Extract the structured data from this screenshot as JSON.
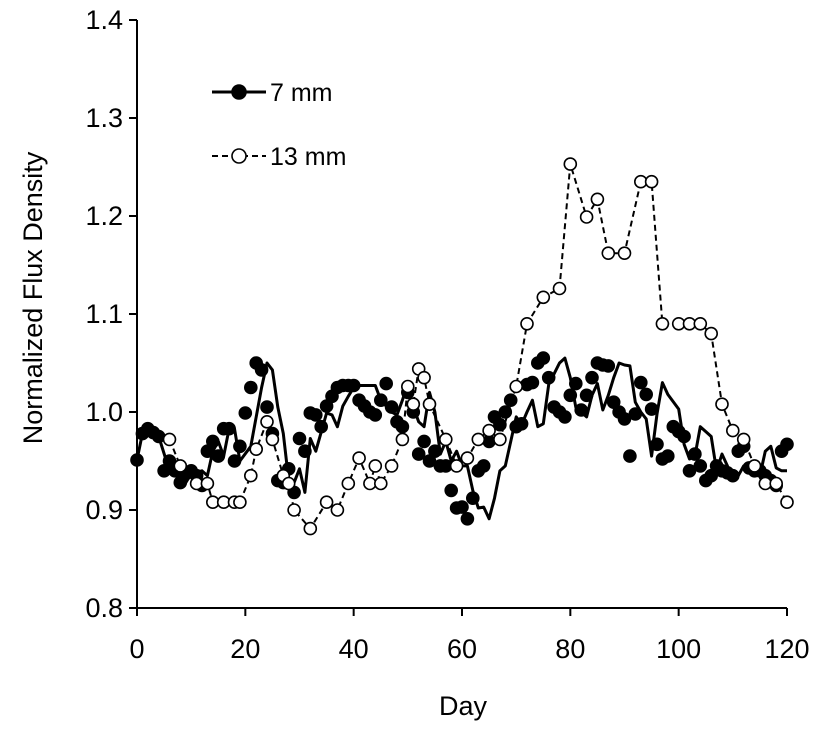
{
  "chart_data": {
    "type": "line",
    "title": "",
    "xlabel": "Day",
    "ylabel": "Normalized Flux Density",
    "xlim": [
      0,
      120
    ],
    "ylim": [
      0.8,
      1.4
    ],
    "xticks": [
      0,
      20,
      40,
      60,
      80,
      100,
      120
    ],
    "xtick_labels": [
      "0",
      "20",
      "40",
      "60",
      "80",
      "100",
      "120"
    ],
    "yticks": [
      0.8,
      0.9,
      1.0,
      1.1,
      1.2,
      1.3,
      1.4
    ],
    "ytick_labels": [
      "0.8",
      "0.9",
      "1.0",
      "1.1",
      "1.2",
      "1.3",
      "1.4"
    ],
    "grid": false,
    "legend_position": "top-left",
    "series": [
      {
        "name": "7 mm",
        "line_style": "solid",
        "marker": "filled-circle",
        "color": "#000000",
        "x": [
          0,
          1,
          2,
          3,
          4,
          5,
          6,
          7,
          8,
          9,
          10,
          11,
          12,
          13,
          14,
          15,
          16,
          17,
          18,
          19,
          20,
          21,
          22,
          23,
          24,
          25,
          26,
          27,
          28,
          29,
          30,
          31,
          32,
          33,
          34,
          35,
          36,
          37,
          38,
          39,
          40,
          41,
          42,
          43,
          44,
          45,
          46,
          47,
          48,
          49,
          50,
          51,
          52,
          53,
          54,
          55,
          56,
          57,
          58,
          59,
          60,
          61,
          62,
          63,
          64,
          65,
          66,
          67,
          68,
          69,
          70,
          71,
          72,
          73,
          74,
          75,
          76,
          77,
          78,
          79,
          80,
          81,
          82,
          83,
          84,
          85,
          86,
          87,
          88,
          89,
          90,
          91,
          92,
          93,
          94,
          95,
          96,
          97,
          98,
          99,
          100,
          101,
          102,
          103,
          104,
          105,
          106,
          107,
          108,
          109,
          110,
          111,
          112,
          113,
          114,
          115,
          116,
          117,
          118,
          119,
          120
        ],
        "y": [
          0.951,
          0.978,
          0.983,
          0.979,
          0.975,
          0.94,
          0.95,
          0.94,
          0.928,
          0.937,
          0.94,
          0.935,
          0.925,
          0.96,
          0.97,
          0.955,
          0.983,
          0.983,
          0.95,
          0.965,
          0.999,
          1.025,
          1.05,
          1.043,
          1.005,
          0.978,
          0.93,
          0.928,
          0.942,
          0.918,
          0.973,
          0.96,
          0.999,
          0.997,
          0.985,
          1.006,
          1.016,
          1.025,
          1.027,
          1.027,
          1.027,
          1.012,
          1.006,
          1.0,
          0.997,
          1.012,
          1.029,
          1.005,
          0.99,
          0.985,
          1.02,
          1.0,
          0.957,
          0.97,
          0.95,
          0.96,
          0.945,
          0.945,
          0.92,
          0.902,
          0.903,
          0.891,
          0.912,
          0.94,
          0.945,
          0.97,
          0.995,
          0.987,
          1.0,
          1.012,
          0.985,
          0.988,
          1.028,
          1.03,
          1.05,
          1.055,
          1.035,
          1.005,
          1.0,
          0.995,
          1.017,
          1.029,
          1.002,
          1.017,
          1.035,
          1.05,
          1.048,
          1.047,
          1.01,
          1.0,
          0.993,
          0.955,
          0.998,
          1.03,
          1.018,
          1.003,
          0.967,
          0.952,
          0.955,
          0.985,
          0.98,
          0.975,
          0.94,
          0.957,
          0.945,
          0.93,
          0.935,
          0.945,
          0.94,
          0.938,
          0.935,
          0.96,
          0.965,
          0.943,
          0.94,
          0.94,
          0.935,
          0.93,
          0.925,
          0.96,
          0.967
        ],
        "x_plot": [
          0,
          1,
          2,
          3,
          4,
          6,
          7,
          8,
          9,
          10,
          12,
          13,
          14,
          15,
          16,
          17,
          18,
          19,
          21,
          23,
          24,
          25,
          26,
          27,
          28,
          29,
          30,
          31,
          32,
          33,
          35,
          36,
          37,
          38,
          39,
          40,
          41,
          43,
          44,
          45,
          46,
          47,
          48,
          49,
          50,
          51,
          52,
          53,
          54,
          55,
          56,
          57,
          58,
          59,
          60,
          61,
          62,
          63,
          64,
          65,
          66,
          67,
          68,
          70,
          71,
          72,
          73,
          74,
          75,
          76,
          78,
          79,
          80,
          81,
          82,
          83,
          84,
          85,
          86,
          87,
          88,
          89,
          90,
          91,
          92,
          93,
          94,
          95,
          96,
          97,
          98,
          100,
          101,
          102,
          103,
          104,
          105,
          106,
          107,
          108,
          109,
          110,
          111,
          112,
          113,
          114,
          115,
          116,
          117,
          118,
          119,
          120
        ],
        "y_plot": [
          0.951,
          0.978,
          0.983,
          0.979,
          0.975,
          0.94,
          0.95,
          0.94,
          0.928,
          0.937,
          0.94,
          0.935,
          0.96,
          0.97,
          0.955,
          0.983,
          0.983,
          0.95,
          0.965,
          1.025,
          1.05,
          1.043,
          1.005,
          0.978,
          0.93,
          0.928,
          0.942,
          0.918,
          0.973,
          0.96,
          0.999,
          0.997,
          0.985,
          1.006,
          1.016,
          1.025,
          1.027,
          1.027,
          1.027,
          1.012,
          1.006,
          1.0,
          0.997,
          1.012,
          1.029,
          1.005,
          0.99,
          0.985,
          1.02,
          1.0,
          0.957,
          0.97,
          0.95,
          0.96,
          0.945,
          0.945,
          0.92,
          0.902,
          0.903,
          0.891,
          0.912,
          0.94,
          0.945,
          0.995,
          0.987,
          1.0,
          1.012,
          0.985,
          0.988,
          1.028,
          1.05,
          1.055,
          1.035,
          1.005,
          1.0,
          0.995,
          1.017,
          1.029,
          1.002,
          1.017,
          1.035,
          1.05,
          1.048,
          1.047,
          1.01,
          1.0,
          0.993,
          0.955,
          0.998,
          1.03,
          1.018,
          1.003,
          0.967,
          0.952,
          0.955,
          0.985,
          0.98,
          0.975,
          0.94,
          0.957,
          0.945,
          0.93,
          0.935,
          0.945,
          0.94,
          0.938,
          0.935,
          0.96,
          0.965,
          0.943,
          0.94,
          0.94
        ]
      },
      {
        "name": "13 mm",
        "line_style": "dashed",
        "marker": "open-circle",
        "color": "#000000",
        "x": [
          6,
          8,
          11,
          13,
          14,
          16,
          18,
          19,
          21,
          22,
          24,
          25,
          27,
          28,
          29,
          32,
          35,
          37,
          39,
          41,
          43,
          44,
          45,
          47,
          49,
          50,
          51,
          52,
          53,
          54,
          57,
          59,
          61,
          63,
          65,
          67,
          70,
          72,
          75,
          78,
          80,
          83,
          85,
          87,
          90,
          93,
          95,
          97,
          100,
          102,
          104,
          106,
          108,
          110,
          112,
          114,
          116,
          118,
          120
        ],
        "y": [
          0.972,
          0.945,
          0.927,
          0.927,
          0.908,
          0.908,
          0.908,
          0.908,
          0.935,
          0.962,
          0.99,
          0.972,
          0.935,
          0.927,
          0.9,
          0.881,
          0.908,
          0.9,
          0.927,
          0.953,
          0.927,
          0.945,
          0.927,
          0.945,
          0.972,
          1.026,
          1.008,
          1.044,
          1.035,
          1.008,
          0.972,
          0.945,
          0.953,
          0.972,
          0.981,
          0.972,
          1.026,
          1.09,
          1.117,
          1.126,
          1.253,
          1.199,
          1.217,
          1.162,
          1.162,
          1.235,
          1.235,
          1.09,
          1.09,
          1.09,
          1.09,
          1.08,
          1.008,
          0.981,
          0.972,
          0.945,
          0.927,
          0.927,
          0.908
        ]
      }
    ]
  },
  "legend": {
    "entries": [
      "7 mm",
      "13 mm"
    ]
  }
}
